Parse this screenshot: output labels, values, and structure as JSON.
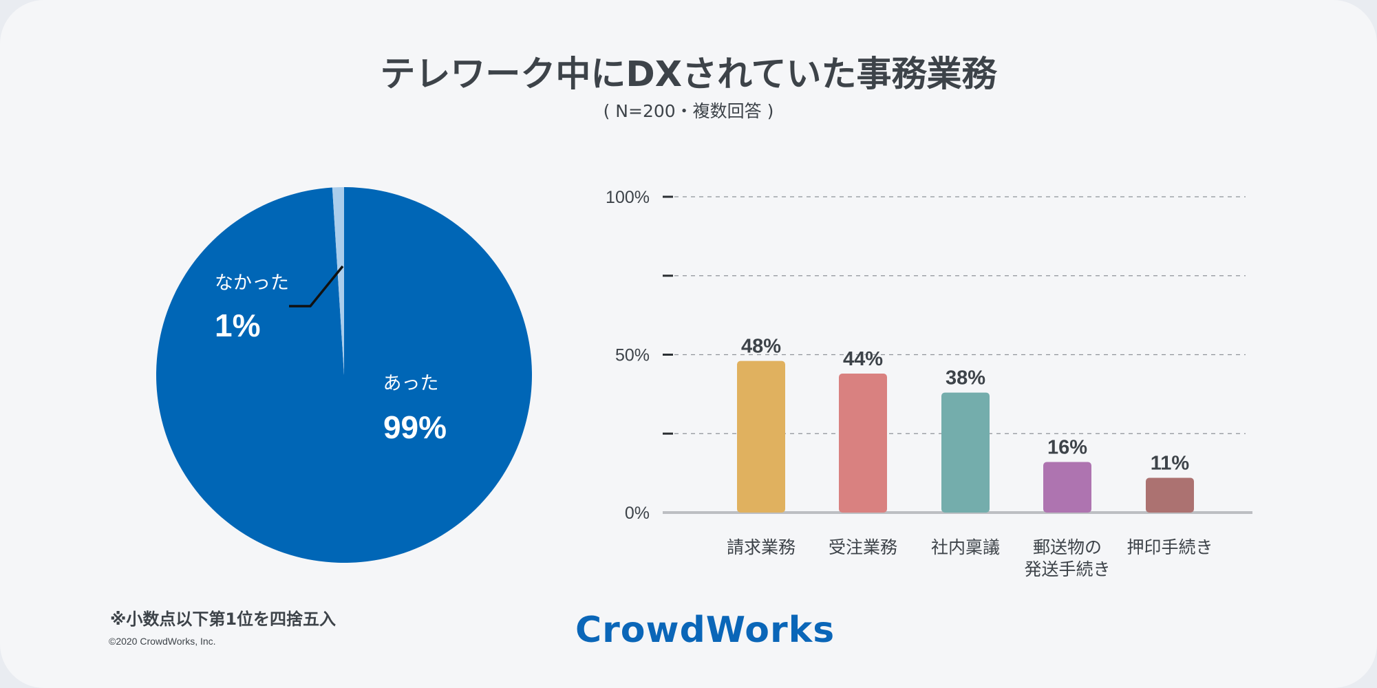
{
  "title": "テレワーク中にDXされていた事務業務",
  "subtitle": "( N=200・複数回答 )",
  "note": "※小数点以下第1位を四捨五入",
  "copyright": "©2020 CrowdWorks, Inc.",
  "logo": "CrowdWorks",
  "colors": {
    "pie_main": "#0066b6",
    "pie_minor": "#aacdec",
    "axis": "#bcbec2",
    "text": "#3d4349"
  },
  "chart_data": [
    {
      "type": "pie",
      "slices": [
        {
          "name": "あった",
          "value": 99,
          "label": "99%",
          "color": "#0066b6"
        },
        {
          "name": "なかった",
          "value": 1,
          "label": "1%",
          "color": "#aacdec"
        }
      ]
    },
    {
      "type": "bar",
      "categories": [
        "請求業務",
        "受注業務",
        "社内稟議",
        "郵送物の\n発送手続き",
        "押印手続き"
      ],
      "values": [
        48,
        44,
        38,
        16,
        11
      ],
      "value_labels": [
        "48%",
        "44%",
        "38%",
        "16%",
        "11%"
      ],
      "colors": [
        "#e0b15f",
        "#d98180",
        "#74adac",
        "#ae74b0",
        "#ac7271"
      ],
      "ylim": [
        0,
        100
      ],
      "yticks": [
        0,
        25,
        50,
        75,
        100
      ],
      "ytick_labels": [
        "0%",
        "",
        "50%",
        "",
        "100%"
      ],
      "grid": true
    }
  ]
}
